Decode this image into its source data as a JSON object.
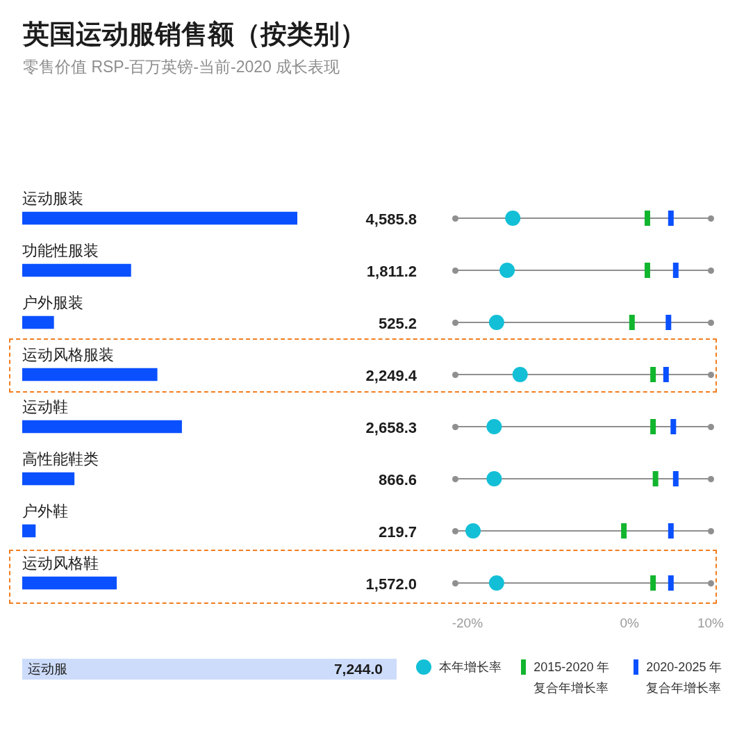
{
  "chart_data": [
    {
      "type": "bar",
      "title": "英国运动服销售额（按类别）",
      "subtitle": "零售价值 RSP-百万英镑-当前-2020 成长表现",
      "orientation": "horizontal",
      "tick_labels": "y",
      "categories": [
        "运动服装",
        "功能性服装",
        "户外服装",
        "运动风格服装",
        "运动鞋",
        "高性能鞋类",
        "户外鞋",
        "运动风格鞋"
      ],
      "values": [
        4585.8,
        1811.2,
        525.2,
        2249.4,
        2658.3,
        866.6,
        219.7,
        1572.0
      ],
      "value_labels": [
        "4,585.8",
        "1,811.2",
        "525.2",
        "2,249.4",
        "2,658.3",
        "866.6",
        "219.7",
        "1,572.0"
      ],
      "color": "#0a50ff",
      "annotations": [
        "运动服",
        "7,244.0"
      ]
    },
    {
      "type": "scatter",
      "orientation": "horizontal",
      "tick_labels": "x",
      "grid": "y",
      "legend": "bottom",
      "categories": [
        null,
        null,
        null,
        null,
        null,
        null,
        null,
        null
      ],
      "xlim": [
        -21.5,
        10
      ],
      "xticks": [
        {
          "value": -20,
          "label": "-20%"
        },
        {
          "value": 0,
          "label": "0%"
        },
        {
          "value": 10,
          "label": "10%"
        }
      ],
      "series": [
        {
          "name": "本年增长率",
          "color": "#12bfd6",
          "marker": "circle",
          "values": [
            -14.4,
            -15.1,
            -16.4,
            -13.5,
            -16.7,
            -16.7,
            -19.3,
            -16.4
          ]
        },
        {
          "name": "2015-2020 年复合年增长率",
          "color": "#12b52e",
          "marker": "square",
          "values": [
            2.2,
            2.2,
            0.3,
            2.9,
            2.9,
            3.2,
            -0.7,
            2.9
          ]
        },
        {
          "name": "2020-2025 年复合年增长率",
          "color": "#0a50ff",
          "marker": "square",
          "values": [
            5.1,
            5.7,
            4.8,
            4.5,
            5.4,
            5.7,
            5.1,
            5.1
          ]
        }
      ]
    }
  ]
}
